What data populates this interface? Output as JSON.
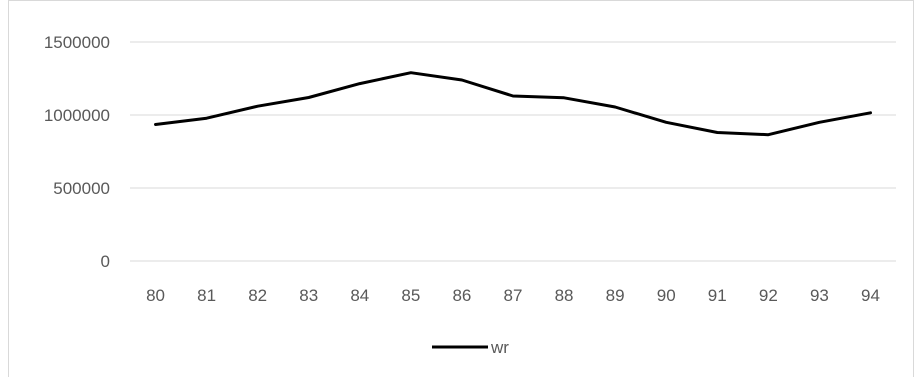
{
  "chart_data": {
    "type": "line",
    "title": "",
    "xlabel": "",
    "ylabel": "",
    "categories": [
      "80",
      "81",
      "82",
      "83",
      "84",
      "85",
      "86",
      "87",
      "88",
      "89",
      "90",
      "91",
      "92",
      "93",
      "94"
    ],
    "series": [
      {
        "name": "wr",
        "color": "#000000",
        "values": [
          935000,
          978000,
          1060000,
          1120000,
          1215000,
          1290000,
          1240000,
          1130000,
          1118000,
          1055000,
          950000,
          880000,
          865000,
          950000,
          1015000
        ]
      }
    ],
    "ylim": [
      0,
      1500000
    ],
    "yticks": [
      "0",
      "500000",
      "1000000",
      "1500000"
    ],
    "grid": true,
    "legend_position": "bottom"
  }
}
